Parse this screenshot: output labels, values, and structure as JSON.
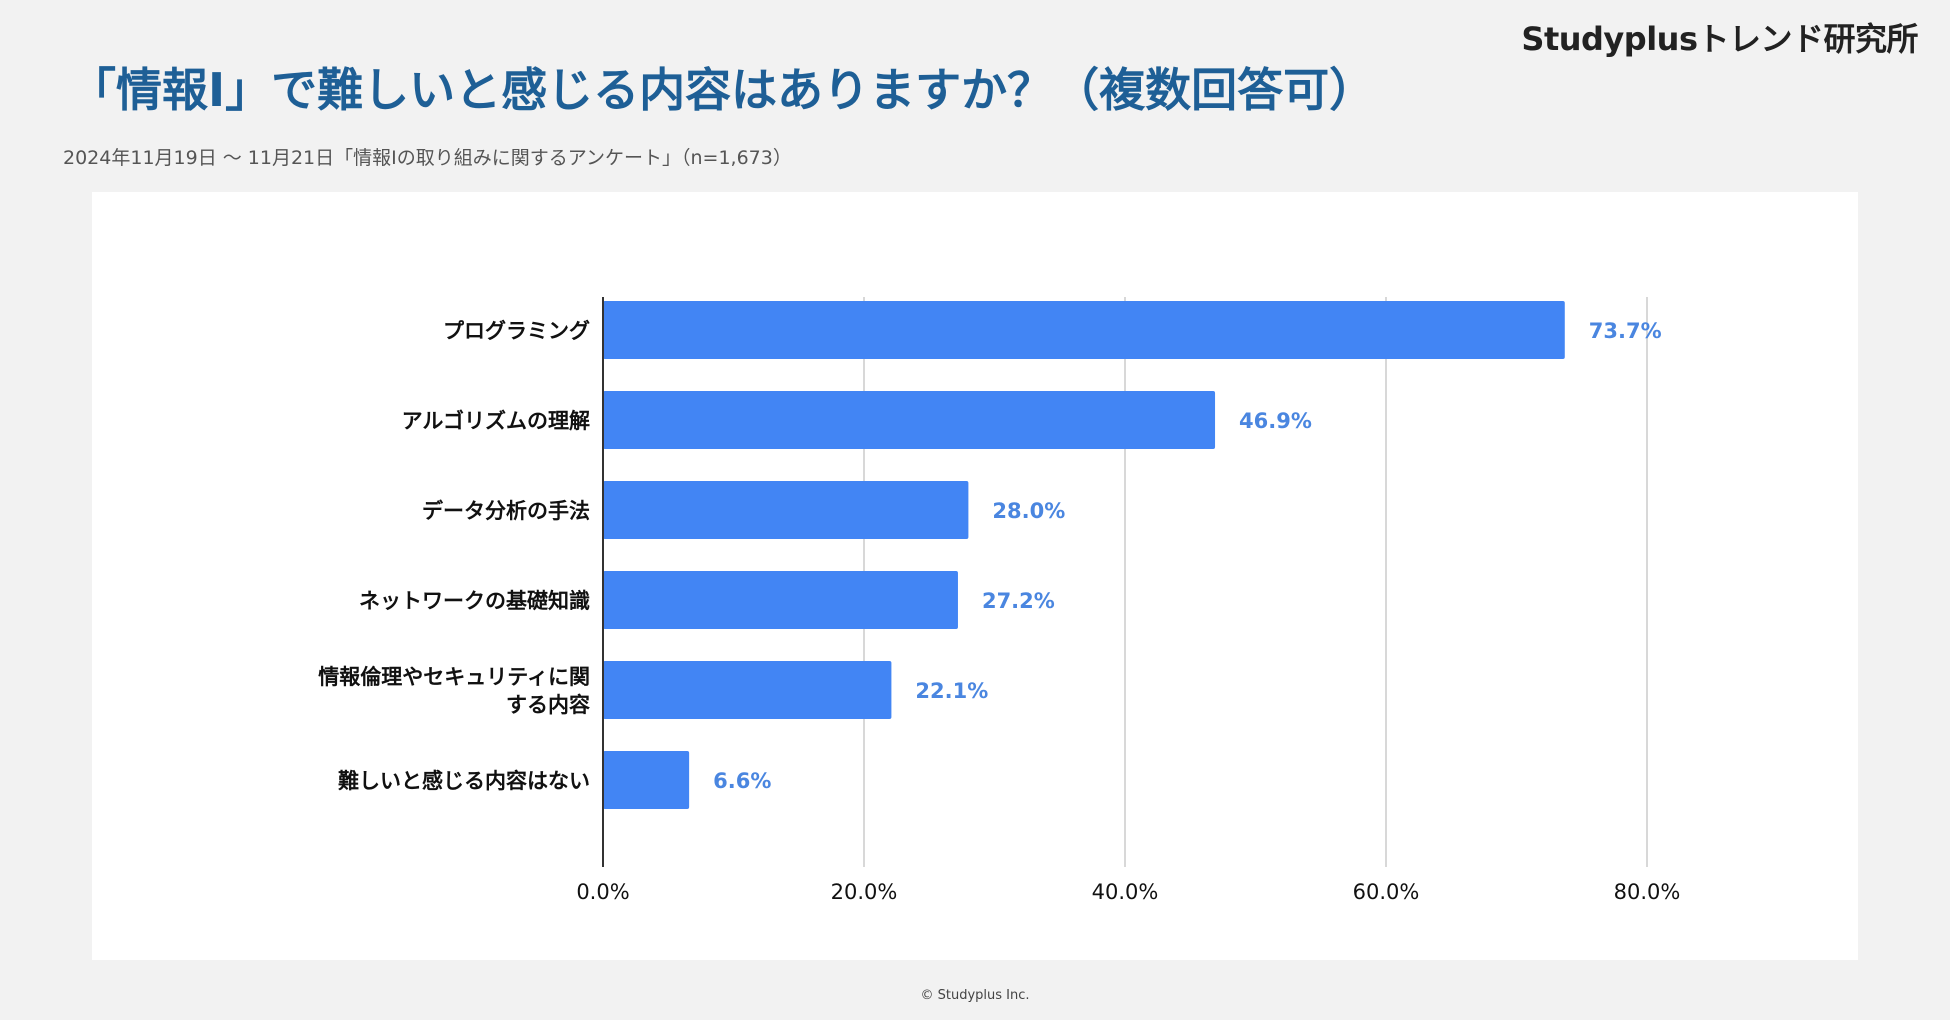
{
  "brand": "Studyplusトレンド研究所",
  "title": "「情報Ⅰ」で難しいと感じる内容はありますか？（複数回答可）",
  "subtitle": "2024年11月19日 〜 11月21日「情報Ⅰの取り組みに関するアンケート」（n=1,673）",
  "copyright": "© Studyplus Inc.",
  "chart_data": {
    "type": "bar",
    "orientation": "horizontal",
    "categories": [
      "プログラミング",
      "アルゴリズムの理解",
      "データ分析の手法",
      "ネットワークの基礎知識",
      "情報倫理やセキュリティに関する内容",
      "難しいと感じる内容はない"
    ],
    "category_lines": [
      [
        "プログラミング"
      ],
      [
        "アルゴリズムの理解"
      ],
      [
        "データ分析の手法"
      ],
      [
        "ネットワークの基礎知識"
      ],
      [
        "情報倫理やセキュリティに関",
        "する内容"
      ],
      [
        "難しいと感じる内容はない"
      ]
    ],
    "values": [
      73.7,
      46.9,
      28.0,
      27.2,
      22.1,
      6.6
    ],
    "value_labels": [
      "73.7%",
      "46.9%",
      "28.0%",
      "27.2%",
      "22.1%",
      "6.6%"
    ],
    "xlim": [
      0,
      80
    ],
    "xticks": [
      0,
      20,
      40,
      60,
      80
    ],
    "xtick_labels": [
      "0.0%",
      "20.0%",
      "40.0%",
      "60.0%",
      "80.0%"
    ],
    "grid": true,
    "bar_color": "#4285f4",
    "label_color": "#4a86e0",
    "grid_color": "#cccccc"
  }
}
